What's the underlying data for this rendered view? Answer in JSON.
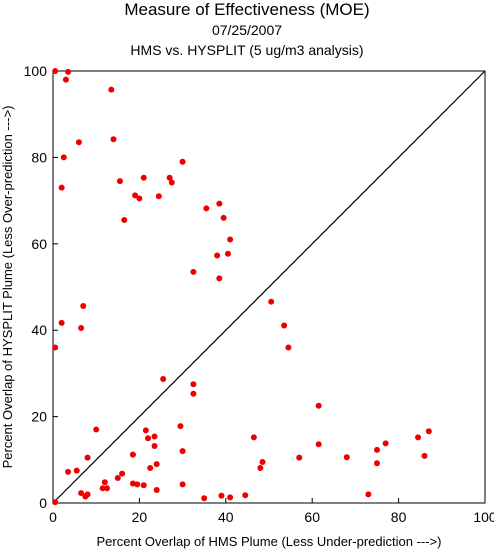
{
  "chart_data": {
    "type": "scatter",
    "title": "Measure of Effectiveness (MOE)",
    "subtitle_date": "07/25/2007",
    "subtitle": "HMS vs. HYSPLIT  (5 ug/m3 analysis)",
    "xlabel": "Percent Overlap of HMS Plume (Less Under-prediction --->)",
    "ylabel": "Percent Overlap of HYSPLIT Plume (Less Over-prediction --->)",
    "xlim": [
      0,
      100
    ],
    "ylim": [
      0,
      100
    ],
    "x_ticks": [
      "0",
      "20",
      "40",
      "60",
      "80",
      "100"
    ],
    "y_ticks": [
      "0",
      "20",
      "40",
      "60",
      "80",
      "100"
    ],
    "reference_line": "y = x",
    "marker_color": "#ee0000",
    "points": [
      [
        0.5,
        100
      ],
      [
        3.5,
        99.8
      ],
      [
        3.0,
        98
      ],
      [
        13.5,
        95.7
      ],
      [
        14.0,
        84.2
      ],
      [
        6.0,
        83.5
      ],
      [
        2.5,
        80
      ],
      [
        30.0,
        79
      ],
      [
        2.0,
        73
      ],
      [
        21.0,
        75.3
      ],
      [
        27.0,
        75.3
      ],
      [
        15.5,
        74.5
      ],
      [
        27.5,
        74.2
      ],
      [
        19.0,
        71.2
      ],
      [
        20.0,
        70.5
      ],
      [
        24.5,
        71
      ],
      [
        35.5,
        68.2
      ],
      [
        38.5,
        69.3
      ],
      [
        39.5,
        66
      ],
      [
        16.5,
        65.5
      ],
      [
        41.0,
        61
      ],
      [
        40.5,
        57.7
      ],
      [
        38.0,
        57.3
      ],
      [
        32.5,
        53.5
      ],
      [
        38.5,
        52
      ],
      [
        50.5,
        46.6
      ],
      [
        53.5,
        41.1
      ],
      [
        54.5,
        36
      ],
      [
        7.0,
        45.6
      ],
      [
        2.0,
        41.7
      ],
      [
        6.5,
        40.5
      ],
      [
        0.5,
        36
      ],
      [
        25.5,
        28.7
      ],
      [
        32.5,
        27.5
      ],
      [
        32.5,
        25.3
      ],
      [
        61.5,
        22.5
      ],
      [
        10.0,
        17.0
      ],
      [
        29.5,
        17.8
      ],
      [
        21.5,
        16.8
      ],
      [
        22.0,
        15
      ],
      [
        23.5,
        15.4
      ],
      [
        46.5,
        15.2
      ],
      [
        61.5,
        13.6
      ],
      [
        84.5,
        15.2
      ],
      [
        87.0,
        16.6
      ],
      [
        77.0,
        13.8
      ],
      [
        23.5,
        13.2
      ],
      [
        30.0,
        12
      ],
      [
        75.0,
        12.3
      ],
      [
        18.5,
        11.2
      ],
      [
        8.0,
        10.5
      ],
      [
        57.0,
        10.5
      ],
      [
        68.0,
        10.6
      ],
      [
        86.0,
        10.9
      ],
      [
        48.5,
        9.5
      ],
      [
        24.0,
        9.0
      ],
      [
        75.0,
        9.2
      ],
      [
        22.5,
        8.1
      ],
      [
        48.0,
        8.1
      ],
      [
        5.5,
        7.5
      ],
      [
        3.5,
        7.2
      ],
      [
        16.0,
        6.8
      ],
      [
        15.0,
        5.8
      ],
      [
        12.0,
        4.8
      ],
      [
        18.5,
        4.5
      ],
      [
        19.5,
        4.3
      ],
      [
        21.0,
        4.1
      ],
      [
        30.0,
        4.3
      ],
      [
        11.5,
        3.4
      ],
      [
        12.5,
        3.4
      ],
      [
        24.0,
        3.0
      ],
      [
        6.5,
        2.3
      ],
      [
        8.0,
        2.0
      ],
      [
        7.5,
        1.5
      ],
      [
        39.0,
        1.7
      ],
      [
        44.5,
        1.8
      ],
      [
        73.0,
        2.0
      ],
      [
        35.0,
        1.1
      ],
      [
        41.0,
        1.3
      ],
      [
        0.5,
        0.2
      ]
    ]
  }
}
